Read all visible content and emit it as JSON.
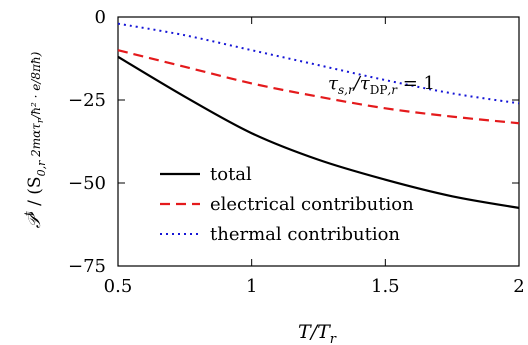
{
  "chart_data": {
    "type": "line",
    "xlabel": "T/T_r",
    "ylabel": "𝒫ᵗ / (S₀,ᵣ 2mατᵣ/ħ² · e/8πħ)",
    "annotation": "τ_{s,r}/τ_{DP,r} = 1",
    "xlim": [
      0.5,
      2
    ],
    "ylim": [
      -75,
      0
    ],
    "x_ticks": [
      0.5,
      1,
      1.5,
      2
    ],
    "x_tick_labels": [
      "0.5",
      "1",
      "1.5",
      "2"
    ],
    "y_ticks": [
      0,
      -25,
      -50,
      -75
    ],
    "y_tick_labels": [
      "0",
      "−25",
      "−50",
      "−75"
    ],
    "grid": false,
    "legend_position": "bottom-center",
    "series": [
      {
        "name": "total",
        "color": "#000000",
        "dash": "solid",
        "x": [
          0.5,
          0.75,
          1.0,
          1.25,
          1.5,
          1.75,
          2.0
        ],
        "y": [
          -12,
          -24,
          -35,
          -43,
          -49,
          -54,
          -57.5
        ]
      },
      {
        "name": "electrical contribution",
        "color": "#e41a1c",
        "dash": "dashed",
        "x": [
          0.5,
          0.75,
          1.0,
          1.25,
          1.5,
          1.75,
          2.0
        ],
        "y": [
          -10,
          -15,
          -20,
          -24,
          -27.5,
          -30,
          -32
        ]
      },
      {
        "name": "thermal contribution",
        "color": "#1515d6",
        "dash": "dotted",
        "x": [
          0.5,
          0.75,
          1.0,
          1.25,
          1.5,
          1.75,
          2.0
        ],
        "y": [
          -2,
          -5.5,
          -10,
          -14.5,
          -19,
          -23,
          -26
        ]
      }
    ]
  }
}
